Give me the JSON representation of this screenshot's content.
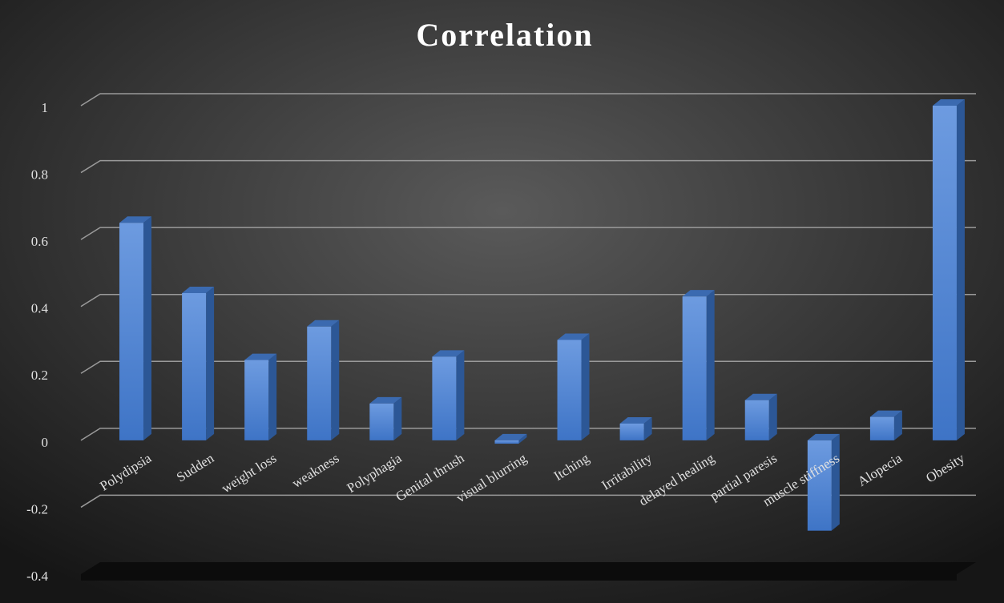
{
  "chart_data": {
    "type": "bar",
    "title": "Correlation",
    "categories": [
      "Polydipsia",
      "Sudden",
      "weight loss",
      "weakness",
      "Polyphagia",
      "Genital thrush",
      "visual blurring",
      "Itching",
      "Irritability",
      "delayed healing",
      "partial paresis",
      "muscle stiffness",
      "Alopecia",
      "Obesity"
    ],
    "values": [
      0.65,
      0.44,
      0.24,
      0.34,
      0.11,
      0.25,
      -0.01,
      0.3,
      0.05,
      0.43,
      0.12,
      -0.27,
      0.07,
      1
    ],
    "color": "#4a7fd0",
    "ylim": [
      -0.4,
      1
    ],
    "yticks": [
      -0.4,
      -0.2,
      0,
      0.2,
      0.4,
      0.6,
      0.8,
      1
    ],
    "grid": true
  }
}
